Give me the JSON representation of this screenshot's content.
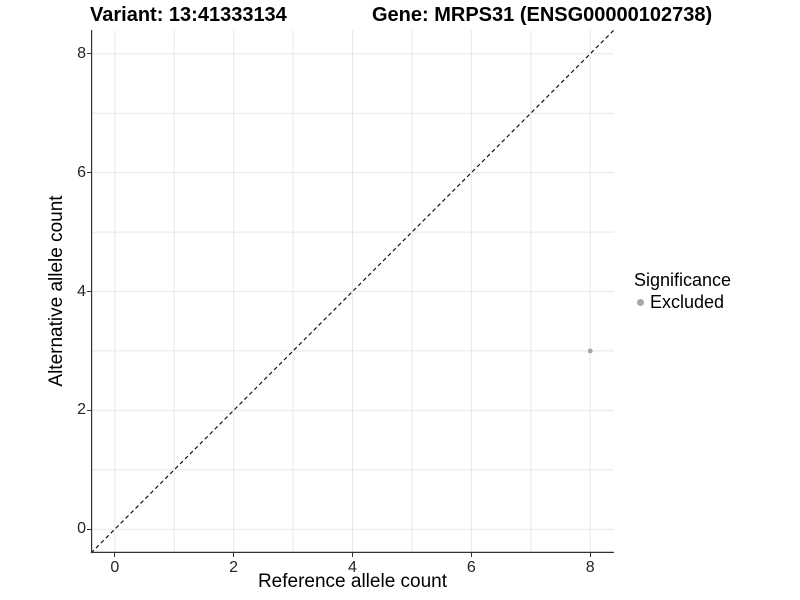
{
  "header": {
    "title_variant": "Variant: 13:41333134",
    "title_gene": "Gene: MRPS31 (ENSG00000102738)"
  },
  "chart_data": {
    "type": "scatter",
    "xlabel": "Reference allele count",
    "ylabel": "Alternative allele count",
    "xlim": [
      -0.4,
      8.4
    ],
    "ylim": [
      -0.4,
      8.4
    ],
    "x_ticks": [
      0,
      2,
      4,
      6,
      8
    ],
    "y_ticks": [
      0,
      2,
      4,
      6,
      8
    ],
    "x_gridlines": [
      0,
      1,
      2,
      3,
      4,
      5,
      6,
      7,
      8
    ],
    "y_gridlines": [
      0,
      1,
      2,
      3,
      4,
      5,
      6,
      7,
      8
    ],
    "grid": true,
    "points": [
      {
        "x": 8,
        "y": 3,
        "series": "Excluded"
      }
    ],
    "identity_line": {
      "x1": -0.4,
      "y1": -0.4,
      "x2": 8.4,
      "y2": 8.4,
      "style": "dashed"
    },
    "legend": {
      "title": "Significance",
      "position": "right",
      "entries": [
        {
          "label": "Excluded",
          "color": "#a6a6a6"
        }
      ]
    },
    "colors": {
      "point_default": "#a6a6a6",
      "gridline": "#e7e7e7",
      "axis_line": "#333333",
      "dashed_line": "#000000"
    }
  }
}
